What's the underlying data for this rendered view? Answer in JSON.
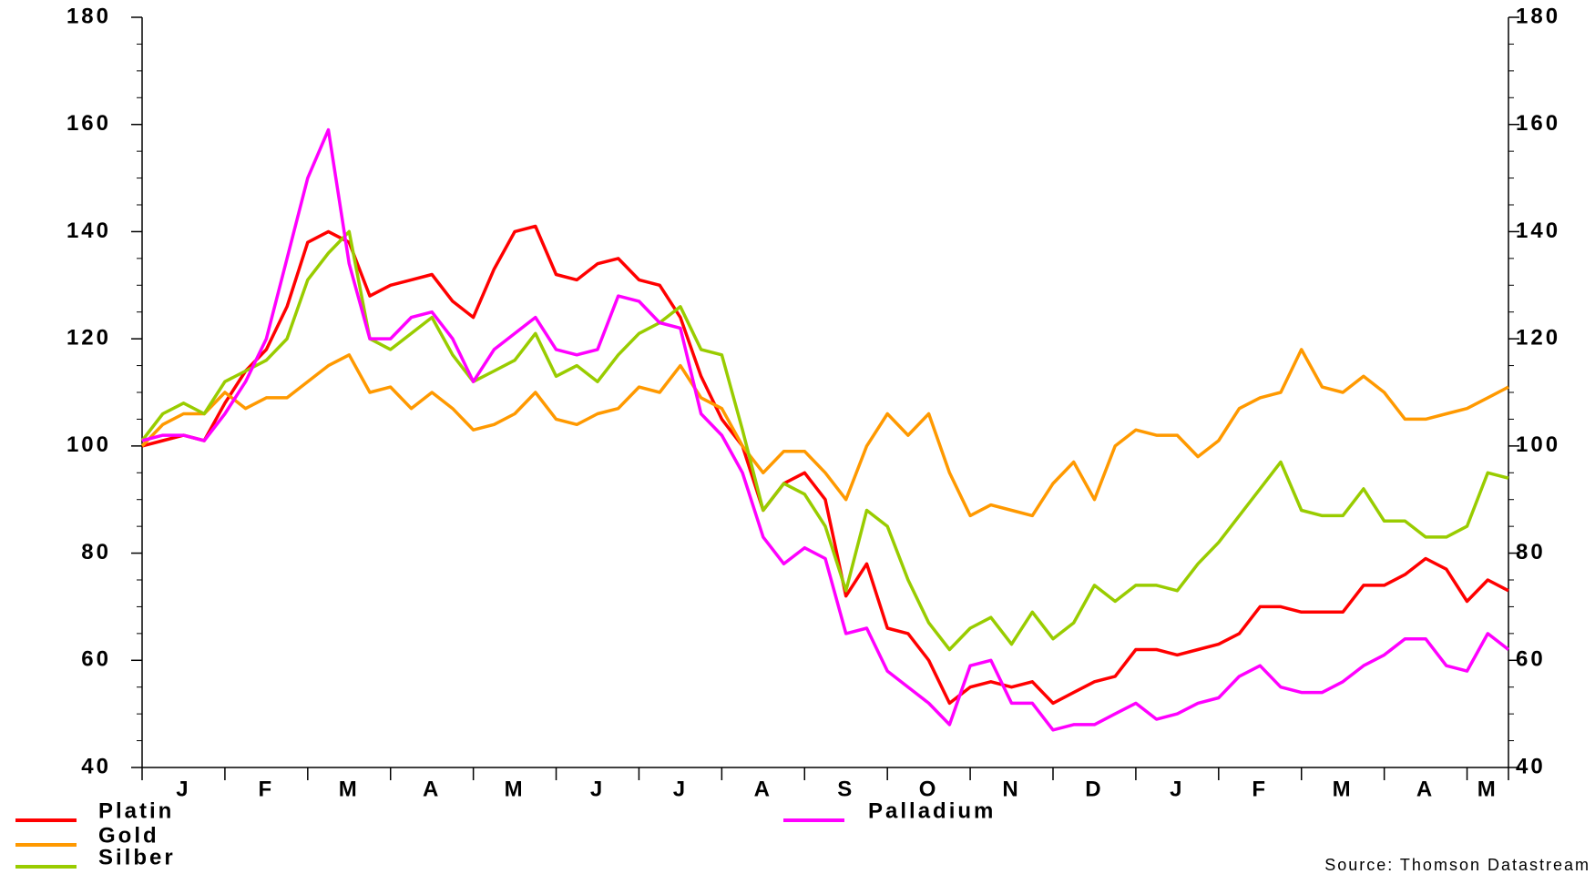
{
  "chart_data": {
    "type": "line",
    "categories": [
      null,
      null,
      "J",
      null,
      null,
      null,
      "F",
      null,
      null,
      null,
      "M",
      null,
      null,
      null,
      "A",
      null,
      null,
      null,
      "M",
      null,
      null,
      null,
      "J",
      null,
      null,
      null,
      "J",
      null,
      null,
      null,
      "A",
      null,
      null,
      null,
      "S",
      null,
      null,
      null,
      "O",
      null,
      null,
      null,
      "N",
      null,
      null,
      null,
      "D",
      null,
      null,
      null,
      "J",
      null,
      null,
      null,
      "F",
      null,
      null,
      null,
      "M",
      null,
      null,
      null,
      "A",
      null,
      null,
      "M",
      null
    ],
    "series": [
      {
        "name": "Platin",
        "color": "#ff0000",
        "values": [
          100,
          101,
          102,
          101,
          108,
          114,
          118,
          126,
          138,
          140,
          138,
          128,
          130,
          131,
          132,
          127,
          124,
          133,
          140,
          141,
          132,
          131,
          134,
          135,
          131,
          130,
          124,
          113,
          105,
          100,
          88,
          93,
          95,
          90,
          72,
          78,
          66,
          65,
          60,
          52,
          55,
          56,
          55,
          56,
          52,
          54,
          56,
          57,
          62,
          62,
          61,
          62,
          63,
          65,
          70,
          70,
          69,
          69,
          69,
          74,
          74,
          76,
          79,
          77,
          71,
          75,
          73
        ]
      },
      {
        "name": "Gold",
        "color": "#ff9900",
        "values": [
          100,
          104,
          106,
          106,
          110,
          107,
          109,
          109,
          112,
          115,
          117,
          110,
          111,
          107,
          110,
          107,
          103,
          104,
          106,
          110,
          105,
          104,
          106,
          107,
          111,
          110,
          115,
          109,
          107,
          100,
          95,
          99,
          99,
          95,
          90,
          100,
          106,
          102,
          106,
          95,
          87,
          89,
          88,
          87,
          93,
          97,
          90,
          100,
          103,
          102,
          102,
          98,
          101,
          107,
          109,
          110,
          118,
          111,
          110,
          113,
          110,
          105,
          105,
          106,
          107,
          109,
          111
        ]
      },
      {
        "name": "Silber",
        "color": "#99cc00",
        "values": [
          101,
          106,
          108,
          106,
          112,
          114,
          116,
          120,
          131,
          136,
          140,
          120,
          118,
          121,
          124,
          117,
          112,
          114,
          116,
          121,
          113,
          115,
          112,
          117,
          121,
          123,
          126,
          118,
          117,
          103,
          88,
          93,
          91,
          85,
          73,
          88,
          85,
          75,
          67,
          62,
          66,
          68,
          63,
          69,
          64,
          67,
          74,
          71,
          74,
          74,
          73,
          78,
          82,
          87,
          92,
          97,
          88,
          87,
          87,
          92,
          86,
          86,
          83,
          83,
          85,
          95,
          94
        ]
      },
      {
        "name": "Palladium",
        "color": "#ff00ff",
        "values": [
          101,
          102,
          102,
          101,
          106,
          112,
          120,
          135,
          150,
          159,
          134,
          120,
          120,
          124,
          125,
          120,
          112,
          118,
          121,
          124,
          118,
          117,
          118,
          128,
          127,
          123,
          122,
          106,
          102,
          95,
          83,
          78,
          81,
          79,
          65,
          66,
          58,
          55,
          52,
          48,
          59,
          60,
          52,
          52,
          47,
          48,
          48,
          50,
          52,
          49,
          50,
          52,
          53,
          57,
          59,
          55,
          54,
          54,
          56,
          59,
          61,
          64,
          64,
          59,
          58,
          65,
          62
        ]
      }
    ],
    "ylim": [
      40,
      180
    ],
    "yticks": [
      40,
      60,
      80,
      100,
      120,
      140,
      160,
      180
    ],
    "yticks_minor": [
      45,
      50,
      55,
      65,
      70,
      75,
      85,
      90,
      95,
      105,
      110,
      115,
      125,
      130,
      135,
      145,
      150,
      155,
      165,
      170,
      175
    ],
    "right_axis": true,
    "source": "Source: Thomson Datastream"
  }
}
